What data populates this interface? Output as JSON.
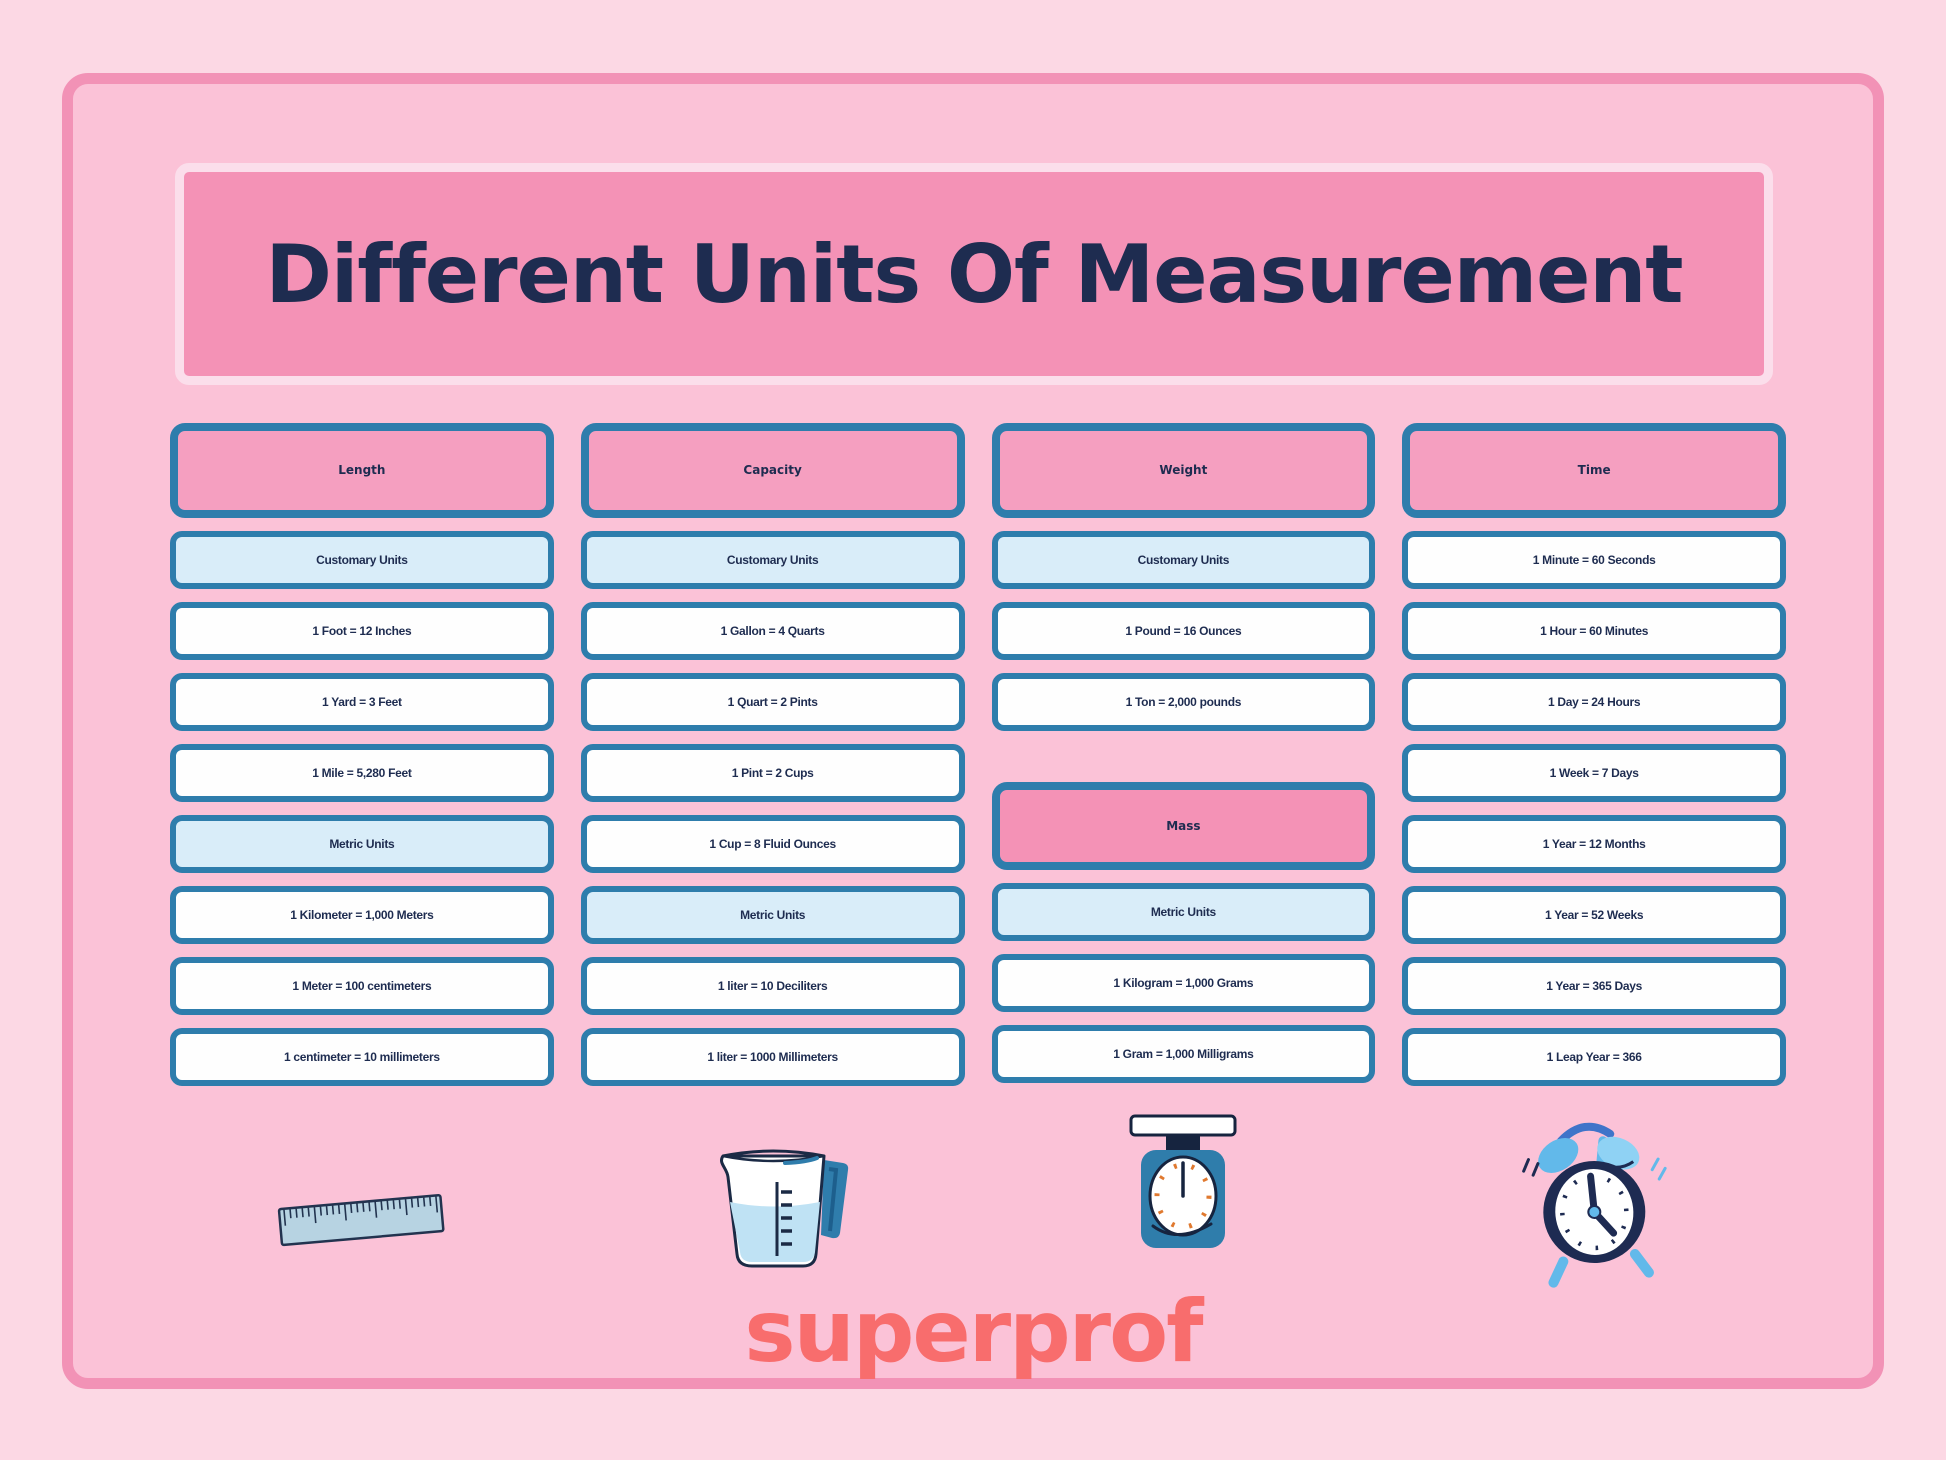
{
  "title": "Different Units Of Measurement",
  "brand": "superprof",
  "columns": [
    {
      "header": "Length",
      "icon": "ruler-icon",
      "items": [
        {
          "type": "subheader",
          "text": "Customary Units"
        },
        {
          "type": "fact",
          "text": "1 Foot = 12 Inches"
        },
        {
          "type": "fact",
          "text": "1 Yard = 3 Feet"
        },
        {
          "type": "fact",
          "text": "1 Mile = 5,280 Feet"
        },
        {
          "type": "subheader",
          "text": "Metric Units"
        },
        {
          "type": "fact",
          "text": "1 Kilometer = 1,000 Meters"
        },
        {
          "type": "fact",
          "text": "1 Meter = 100 centimeters"
        },
        {
          "type": "fact",
          "text": "1 centimeter = 10 millimeters"
        }
      ]
    },
    {
      "header": "Capacity",
      "icon": "measuring-cup-icon",
      "items": [
        {
          "type": "subheader",
          "text": "Customary Units"
        },
        {
          "type": "fact",
          "text": "1 Gallon = 4 Quarts"
        },
        {
          "type": "fact",
          "text": "1 Quart = 2 Pints"
        },
        {
          "type": "fact",
          "text": "1 Pint = 2 Cups"
        },
        {
          "type": "fact",
          "text": "1 Cup = 8 Fluid Ounces"
        },
        {
          "type": "subheader",
          "text": "Metric Units"
        },
        {
          "type": "fact",
          "text": "1 liter = 10 Deciliters"
        },
        {
          "type": "fact",
          "text": "1 liter = 1000 Millimeters"
        }
      ]
    },
    {
      "header": "Weight",
      "icon": "weighing-scale-icon",
      "items": [
        {
          "type": "subheader",
          "text": "Customary Units"
        },
        {
          "type": "fact",
          "text": "1 Pound = 16 Ounces"
        },
        {
          "type": "fact",
          "text": "1 Ton = 2,000 pounds"
        },
        {
          "type": "spacer"
        },
        {
          "type": "header2",
          "text": "Mass"
        },
        {
          "type": "subheader",
          "text": "Metric Units"
        },
        {
          "type": "fact",
          "text": "1 Kilogram = 1,000 Grams"
        },
        {
          "type": "fact",
          "text": "1 Gram = 1,000 Milligrams"
        }
      ]
    },
    {
      "header": "Time",
      "icon": "alarm-clock-icon",
      "items": [
        {
          "type": "fact",
          "text": "1 Minute = 60 Seconds"
        },
        {
          "type": "fact",
          "text": "1 Hour = 60 Minutes"
        },
        {
          "type": "fact",
          "text": "1 Day = 24 Hours"
        },
        {
          "type": "fact",
          "text": "1 Week = 7 Days"
        },
        {
          "type": "fact",
          "text": "1 Year = 12 Months"
        },
        {
          "type": "fact",
          "text": "1 Year = 52 Weeks"
        },
        {
          "type": "fact",
          "text": "1 Year = 365 Days"
        },
        {
          "type": "fact",
          "text": "1 Leap Year = 366"
        }
      ]
    }
  ],
  "icons": [
    "ruler-icon",
    "measuring-cup-icon",
    "weighing-scale-icon",
    "alarm-clock-icon"
  ],
  "colors": {
    "outer_background": "#fcd8e4",
    "panel_fill": "#fbc2d7",
    "panel_border": "#f292b6",
    "title_fill": "#f492b6",
    "title_border": "#fbdeeb",
    "header_fill": "#f59fc0",
    "box_border_blue": "#2e7dac",
    "subheader_fill": "#d9edf9",
    "fact_fill": "#fefefe",
    "text_navy": "#1e2c50",
    "brand_coral": "#f86d6d",
    "icon_light_blue": "#62b9ea",
    "icon_steel_blue": "#2f7dab",
    "icon_orange": "#e0792f"
  }
}
